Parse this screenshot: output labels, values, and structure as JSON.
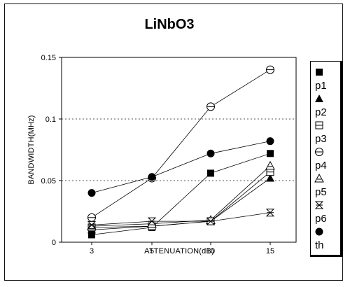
{
  "chart_data": {
    "type": "line",
    "title": "LiNbO3",
    "xlabel": "ATTENUATION(dB)",
    "ylabel": "BANDWIDTH(MHz)",
    "categories": [
      "3",
      "5",
      "10",
      "15"
    ],
    "ylim": [
      0,
      0.15
    ],
    "yticks": [
      "0",
      "0.05",
      "0.1",
      "0.15"
    ],
    "grid": "horizontal-dotted",
    "legend_position": "right",
    "series": [
      {
        "name": "p1",
        "marker": "square",
        "values": [
          0.006,
          0.012,
          0.056,
          0.072
        ]
      },
      {
        "name": "p2",
        "marker": "triangle",
        "values": [
          0.01,
          0.013,
          0.017,
          0.052
        ]
      },
      {
        "name": "p3",
        "marker": "square-open",
        "values": [
          0.012,
          0.013,
          0.017,
          0.057
        ]
      },
      {
        "name": "p4",
        "marker": "circle-open",
        "values": [
          0.02,
          0.052,
          0.11,
          0.14
        ]
      },
      {
        "name": "p5",
        "marker": "triangle-open",
        "values": [
          0.013,
          0.015,
          0.018,
          0.062
        ]
      },
      {
        "name": "p6",
        "marker": "hourglass",
        "values": [
          0.014,
          0.017,
          0.017,
          0.024
        ]
      },
      {
        "name": "th",
        "marker": "circle",
        "values": [
          0.04,
          0.053,
          0.072,
          0.082
        ]
      }
    ]
  }
}
